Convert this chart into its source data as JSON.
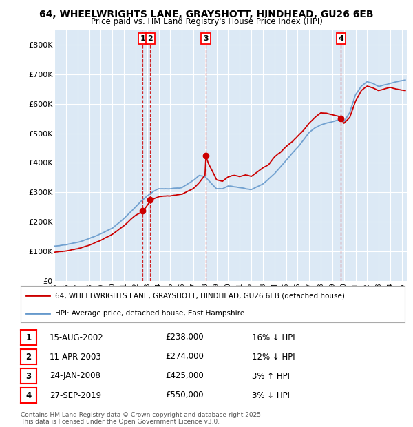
{
  "title_line1": "64, WHEELWRIGHTS LANE, GRAYSHOTT, HINDHEAD, GU26 6EB",
  "title_line2": "Price paid vs. HM Land Registry's House Price Index (HPI)",
  "background_color": "#dce9f5",
  "sale_color": "#cc0000",
  "hpi_color": "#6699cc",
  "sale_label": "64, WHEELWRIGHTS LANE, GRAYSHOTT, HINDHEAD, GU26 6EB (detached house)",
  "hpi_label": "HPI: Average price, detached house, East Hampshire",
  "ylim": [
    0,
    850000
  ],
  "yticks": [
    0,
    100000,
    200000,
    300000,
    400000,
    500000,
    600000,
    700000,
    800000
  ],
  "ytick_labels": [
    "£0",
    "£100K",
    "£200K",
    "£300K",
    "£400K",
    "£500K",
    "£600K",
    "£700K",
    "£800K"
  ],
  "sales": [
    {
      "num": 1,
      "date_label": "15-AUG-2002",
      "price": 238000,
      "pct": "16%",
      "dir": "↓",
      "year": 2002.62
    },
    {
      "num": 2,
      "date_label": "11-APR-2003",
      "price": 274000,
      "pct": "12%",
      "dir": "↓",
      "year": 2003.28
    },
    {
      "num": 3,
      "date_label": "24-JAN-2008",
      "price": 425000,
      "pct": "3%",
      "dir": "↑",
      "year": 2008.07
    },
    {
      "num": 4,
      "date_label": "27-SEP-2019",
      "price": 550000,
      "pct": "3%",
      "dir": "↓",
      "year": 2019.75
    }
  ],
  "copyright_text": "Contains HM Land Registry data © Crown copyright and database right 2025.\nThis data is licensed under the Open Government Licence v3.0.",
  "xmin": 1995,
  "xmax": 2025.5
}
